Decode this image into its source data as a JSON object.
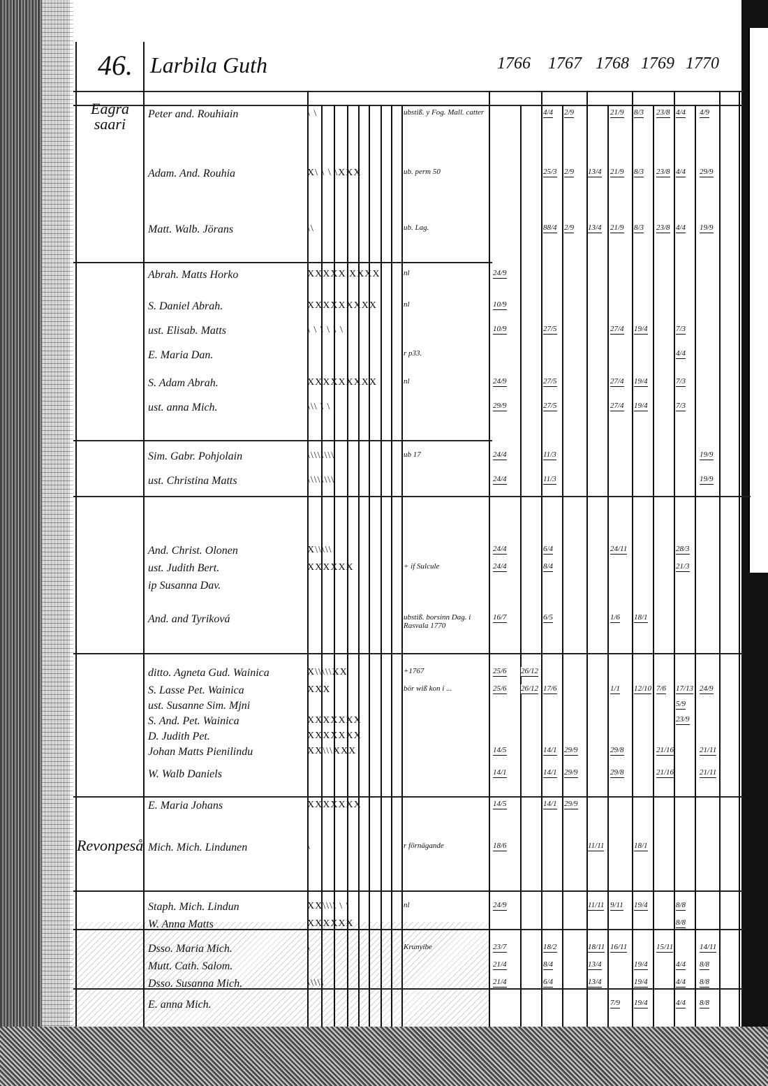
{
  "header": {
    "page_number": "46.",
    "estate": "Larbila Guth",
    "years": [
      "1766",
      "1767",
      "1768",
      "1769",
      "1770"
    ]
  },
  "places": [
    "Eagra saari",
    "Revonpeså"
  ],
  "rows": [
    {
      "name": "Peter and. Rouhiain",
      "marks": "\\ \\",
      "note": "ubstiß. y Fog. Mall. catter",
      "fractions": {
        "1767a": "4/4",
        "1767b": "2/9",
        "1768b": "21/9",
        "1769a": "8/3",
        "1769b": "23/8",
        "1770a": "4/4",
        "1770b": "4/9"
      }
    },
    {
      "name": "Adam. And. Rouhia",
      "marks": "X\\ \\ \\ \\XXX",
      "note": "ub. perm 50",
      "fractions": {
        "1767a": "25/3",
        "1767b": "2/9",
        "1768a": "13/4",
        "1768b": "21/9",
        "1769a": "8/3",
        "1769b": "23/8",
        "1770a": "4/4",
        "1770b": "29/9"
      }
    },
    {
      "name": "Matt. Walb. Jörans",
      "marks": " \\\\",
      "note": "ub. Lag.",
      "fractions": {
        "1767a": "88/4",
        "1767b": "2/9",
        "1768a": "13/4",
        "1768b": "21/9",
        "1769a": "8/3",
        "1769b": "23/8",
        "1770a": "4/4",
        "1770b": "19/9"
      }
    },
    {
      "name": "Abrah. Matts Horko",
      "marks": "XXXXX XXXX",
      "note": "nl",
      "fractions": {
        "1766a": "24/9"
      }
    },
    {
      "name": "S. Daniel Abrah.",
      "marks": "XXXXXXXXX",
      "note": "nl",
      "fractions": {
        "1766a": "10/9"
      }
    },
    {
      "name": "ust. Elisab. Matts",
      "marks": "\\ \\ \\   \\ \\ \\",
      "note": "",
      "fractions": {
        "1766a": "10/9",
        "1767a": "27/5",
        "1768b": "27/4",
        "1769a": "19/4",
        "1770a": "7/3"
      }
    },
    {
      "name": "E. Maria Dan.",
      "marks": "",
      "note": "r p33.",
      "fractions": {
        "1770a": "4/4"
      }
    },
    {
      "name": "S. Adam Abrah.",
      "marks": "XXXXXXXXX",
      "note": "nl",
      "fractions": {
        "1766a": "24/9",
        "1767a": "27/5",
        "1768b": "27/4",
        "1769a": "19/4",
        "1770a": "7/3"
      }
    },
    {
      "name": "ust. anna Mich.",
      "marks": "\\\\\\  \\ \\",
      "note": "",
      "fractions": {
        "1766a": "29/9",
        "1767a": "27/5",
        "1768b": "27/4",
        "1769a": "19/4",
        "1770a": "7/3"
      }
    },
    {
      "name": "Sim. Gabr. Pohjolain",
      "marks": "\\\\\\\\\\\\\\\\",
      "note": "ub 17",
      "fractions": {
        "1766a": "24/4",
        "1767a": "11/3",
        "1770b": "19/9"
      }
    },
    {
      "name": "ust. Christina Matts",
      "marks": "\\\\\\\\\\\\\\\\",
      "note": "",
      "fractions": {
        "1766a": "24/4",
        "1767a": "11/3",
        "1770b": "19/9"
      }
    },
    {
      "name": "And. Christ. Olonen",
      "marks": "X\\\\\\\\\\",
      "note": "",
      "fractions": {
        "1766a": "24/4",
        "1767a": "6/4",
        "1768b": "24/11",
        "1770a": "28/3"
      }
    },
    {
      "name": "ust. Judith Bert.",
      "marks": "XXXXXX",
      "note": "+ if Sulcule",
      "fractions": {
        "1766a": "24/4",
        "1767a": "8/4",
        "1770a": "21/3"
      }
    },
    {
      "name": "ip Susanna Dav.",
      "marks": "",
      "note": "",
      "fractions": {}
    },
    {
      "name": "And. and Tyriková",
      "marks": "",
      "note": "ubstiß. borsinn Dag. i Rasvala 1770",
      "fractions": {
        "1766a": "16/7",
        "1767a": "6/5",
        "1768b": "1/6",
        "1769a": "18/1"
      }
    },
    {
      "name": "ditto. Agneta Gud. Wainica",
      "marks": "X\\\\\\\\\\XX",
      "note": "+1767",
      "fractions": {
        "1766a": "25/6",
        "1766b": "26/12"
      }
    },
    {
      "name": "S. Lasse Pet. Wainica",
      "marks": "XXX",
      "note": "bör wiß kon i ...",
      "fractions": {
        "1766a": "25/6",
        "1766b": "26/12",
        "1767a": "17/6",
        "1768b": "1/1",
        "1769a": "12/10",
        "1769b": "7/6",
        "1770a": "17/13",
        "1770b": "24/9"
      }
    },
    {
      "name": "ust. Susanne Sim. Mjni",
      "marks": "",
      "note": "",
      "fractions": {
        "1770a": "5/9"
      }
    },
    {
      "name": "S. And. Pet. Wainica",
      "marks": "XXXXXXX",
      "note": "",
      "fractions": {
        "1770a": "23/9"
      }
    },
    {
      "name": "D. Judith Pet.",
      "marks": "XXXXXXX",
      "note": "",
      "fractions": {}
    },
    {
      "name": "Johan Matts Pienilindu",
      "marks": "XX\\\\\\XXX",
      "note": "",
      "fractions": {
        "1766a": "14/5",
        "1767a": "14/1",
        "1767b": "29/9",
        "1768b": "29/8",
        "1769b": "21/16",
        "1770b": "21/11"
      }
    },
    {
      "name": "W. Walb Daniels",
      "marks": "",
      "note": "",
      "fractions": {
        "1766a": "14/1",
        "1767a": "14/1",
        "1767b": "29/9",
        "1768b": "29/8",
        "1769b": "21/16",
        "1770b": "21/11"
      }
    },
    {
      "name": "E. Maria Johans",
      "marks": "XXXXXXX",
      "note": "",
      "fractions": {
        "1766a": "14/5",
        "1767a": "14/1",
        "1767b": "29/9"
      }
    },
    {
      "name": "Mich. Mich. Lindunen",
      "marks": "  \\",
      "note": "r förnägande",
      "fractions": {
        "1766a": "18/6",
        "1768a": "11/11",
        "1769a": "18/1"
      }
    },
    {
      "name": "Staph. Mich. Lindun",
      "marks": "XX\\\\\\\\ \\ \\",
      "note": "nl",
      "fractions": {
        "1766a": "24/9",
        "1768a": "11/11",
        "1768b": "9/11",
        "1769a": "19/4",
        "1770a": "8/8"
      }
    },
    {
      "name": "W. Anna Matts",
      "marks": "XXXXXX",
      "note": "",
      "fractions": {
        "1770a": "8/8"
      }
    },
    {
      "name": "Dsso. Maria Mich.",
      "marks": "  \\",
      "note": "Krunyibe",
      "fractions": {
        "1766a": "23/7",
        "1767a": "18/2",
        "1768a": "18/11",
        "1768b": "16/11",
        "1769b": "15/11",
        "1770b": "14/11"
      }
    },
    {
      "name": "Mutt. Cath. Salom.",
      "marks": "",
      "note": "",
      "fractions": {
        "1766a": "21/4",
        "1767a": "8/4",
        "1768a": "13/4",
        "1769a": "19/4",
        "1770a": "4/4",
        "1770b": "8/8"
      }
    },
    {
      "name": "Dsso. Susanna Mich.",
      "marks": "\\\\\\\\\\",
      "note": "",
      "fractions": {
        "1766a": "21/4",
        "1767a": "6/4",
        "1768a": "13/4",
        "1769a": "19/4",
        "1770a": "4/4",
        "1770b": "8/8"
      }
    },
    {
      "name": "E. anna Mich.",
      "marks": "",
      "note": "",
      "fractions": {
        "1768b": "7/9",
        "1769a": "19/4",
        "1770a": "4/4",
        "1770b": "8/8"
      }
    }
  ]
}
